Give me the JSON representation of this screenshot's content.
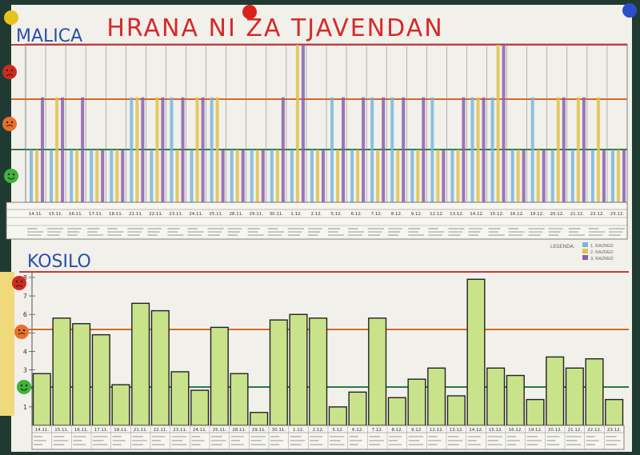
{
  "poster": {
    "title": "HRANA NI ZA TJAVENDAN",
    "colors": {
      "paper": "#f2f0ea",
      "board": "#1f3a30",
      "title": "#d42a2a",
      "heading": "#2b4fa8",
      "line_top": "#c93a3a",
      "line_mid": "#d9662a",
      "line_low": "#2a7a4a"
    }
  },
  "malica": {
    "heading": "MALICA",
    "level_icons": [
      "sad-face-icon",
      "neutral-face-icon",
      "happy-face-icon"
    ],
    "legend": {
      "label": "LEGENDA:",
      "entries": [
        {
          "label": "1. RAZRED",
          "color": "#79b7dc"
        },
        {
          "label": "2. RAZRED",
          "color": "#e2c24a"
        },
        {
          "label": "3. RAZRED",
          "color": "#8a5fb0"
        }
      ]
    }
  },
  "kosilo": {
    "heading": "KOSILO",
    "level_icons": [
      "sad-face-icon",
      "neutral-face-icon",
      "happy-face-icon"
    ]
  },
  "chart_data": [
    {
      "type": "bar",
      "name": "malica",
      "categories": [
        "14.11.",
        "15.11.",
        "16.11.",
        "17.11.",
        "18.11.",
        "21.11.",
        "22.11.",
        "23.11.",
        "24.11.",
        "25.11.",
        "28.11.",
        "29.11.",
        "30.11.",
        "1.12.",
        "2.12.",
        "5.12.",
        "6.12.",
        "7.12.",
        "8.12.",
        "9.12.",
        "12.12.",
        "13.12.",
        "14.12.",
        "15.12.",
        "16.12.",
        "19.12.",
        "20.12.",
        "21.12.",
        "22.12.",
        "23.12."
      ],
      "series": [
        {
          "color": "#79b7dc",
          "values": [
            1,
            1,
            1,
            1,
            1,
            2,
            1,
            2,
            1,
            2,
            1,
            1,
            1,
            1,
            1,
            2,
            1,
            2,
            2,
            1,
            2,
            1,
            2,
            2,
            1,
            2,
            1,
            1,
            1,
            1
          ]
        },
        {
          "color": "#e2c24a",
          "values": [
            1,
            2,
            1,
            1,
            1,
            2,
            2,
            1,
            2,
            2,
            1,
            1,
            1,
            3,
            1,
            1,
            1,
            1,
            1,
            1,
            1,
            1,
            2,
            3,
            1,
            1,
            2,
            2,
            2,
            1
          ]
        },
        {
          "color": "#8a5fb0",
          "values": [
            2,
            2,
            2,
            1,
            1,
            2,
            2,
            2,
            2,
            1,
            1,
            1,
            2,
            3,
            1,
            2,
            2,
            2,
            2,
            2,
            1,
            2,
            2,
            3,
            1,
            1,
            2,
            2,
            1,
            1
          ]
        }
      ],
      "ylim": [
        0,
        3
      ]
    },
    {
      "type": "bar",
      "name": "kosilo",
      "categories": [
        "14.11.",
        "15.11.",
        "16.11.",
        "17.11.",
        "18.11.",
        "21.11.",
        "22.11.",
        "23.11.",
        "24.11.",
        "25.11.",
        "28.11.",
        "29.11.",
        "30.11.",
        "1.12.",
        "2.12.",
        "5.12.",
        "6.12.",
        "7.12.",
        "8.12.",
        "9.12.",
        "12.12.",
        "13.12.",
        "14.12.",
        "15.12.",
        "16.12.",
        "19.12.",
        "20.12.",
        "21.12.",
        "22.12.",
        "23.12."
      ],
      "values": [
        2.8,
        5.8,
        5.5,
        4.9,
        2.2,
        6.6,
        6.2,
        2.9,
        1.9,
        5.3,
        2.8,
        0.7,
        5.7,
        6.0,
        5.8,
        1.0,
        1.8,
        5.8,
        1.5,
        2.5,
        3.1,
        1.6,
        7.9,
        3.1,
        2.7,
        1.4,
        3.7,
        3.1,
        3.6,
        1.4
      ],
      "y_ticks": [
        "1",
        "2",
        "3",
        "4",
        "5",
        "6",
        "7",
        "8"
      ],
      "ylim": [
        0,
        8.3
      ]
    }
  ]
}
